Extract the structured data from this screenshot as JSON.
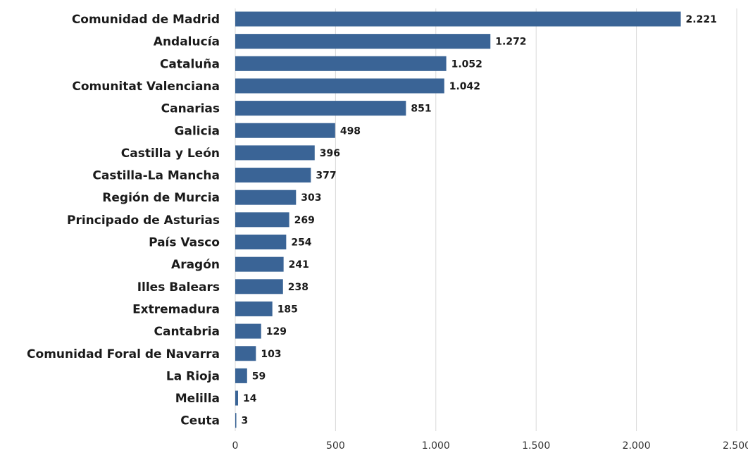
{
  "chart_data": {
    "type": "bar",
    "orientation": "horizontal",
    "title": "",
    "xlabel": "",
    "ylabel": "",
    "categories": [
      "Comunidad de Madrid",
      "Andalucía",
      "Cataluña",
      "Comunitat Valenciana",
      "Canarias",
      "Galicia",
      "Castilla y León",
      "Castilla-La Mancha",
      "Región de Murcia",
      "Principado de Asturias",
      "País Vasco",
      "Aragón",
      "Illes Balears",
      "Extremadura",
      "Cantabria",
      "Comunidad Foral de Navarra",
      "La Rioja",
      "Melilla",
      "Ceuta"
    ],
    "values": [
      2221,
      1272,
      1052,
      1042,
      851,
      498,
      396,
      377,
      303,
      269,
      254,
      241,
      238,
      185,
      129,
      103,
      59,
      14,
      3
    ],
    "value_labels": [
      "2.221",
      "1.272",
      "1.052",
      "1.042",
      "851",
      "498",
      "396",
      "377",
      "303",
      "269",
      "254",
      "241",
      "238",
      "185",
      "129",
      "103",
      "59",
      "14",
      "3"
    ],
    "xlim": [
      0,
      2500
    ],
    "x_ticks": [
      0,
      500,
      1000,
      1500,
      2000,
      2500
    ],
    "x_tick_labels": [
      "0",
      "500",
      "1.000",
      "1.500",
      "2.000",
      "2.500"
    ],
    "grid": true,
    "legend": "none",
    "bar_color": "#3a6496",
    "grid_color": "#d9d9d9"
  }
}
